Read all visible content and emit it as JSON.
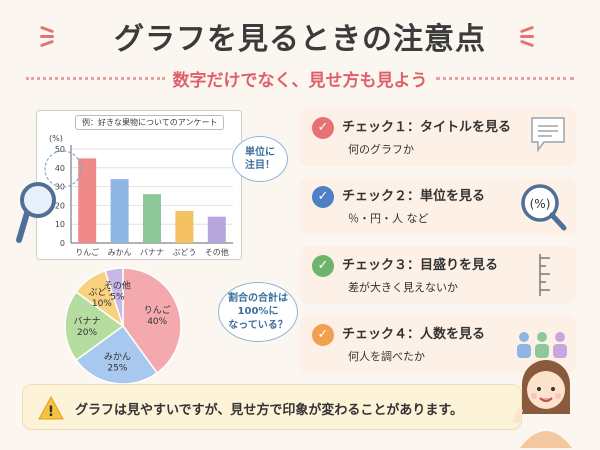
{
  "title": "グラフを見るときの注意点",
  "subtitle": "数字だけでなく、見せ方も見よう",
  "bar_chart_caption": "例：好きな果物についてのアンケート",
  "bubble_unit": [
    "単位に",
    "注目！"
  ],
  "bubble_ratio": [
    "割合の合計は",
    "100%に",
    "なっている？"
  ],
  "chart_data": [
    {
      "type": "bar",
      "title": "例：好きな果物についてのアンケート",
      "ylabel": "(%)",
      "categories": [
        "りんご",
        "みかん",
        "バナナ",
        "ぶどう",
        "その他"
      ],
      "values": [
        45,
        34,
        26,
        17,
        14
      ],
      "ylim": [
        0,
        50
      ],
      "yticks": [
        0,
        10,
        20,
        30,
        40,
        50
      ],
      "colors": [
        "#f08a8a",
        "#8fb6e3",
        "#8ec89a",
        "#f5c263",
        "#b7a6db"
      ]
    },
    {
      "type": "pie",
      "labels": [
        "りんご",
        "みかん",
        "バナナ",
        "ぶどう",
        "その他"
      ],
      "values": [
        40,
        25,
        20,
        10,
        5
      ],
      "value_labels": [
        "40%",
        "25%",
        "20%",
        "10%",
        "5%"
      ],
      "colors": [
        "#f4a9ae",
        "#a9c8ef",
        "#b6dda0",
        "#f8d27f",
        "#c9b8e6"
      ]
    }
  ],
  "checks": [
    {
      "heading": "チェック１：タイトルを見る",
      "desc": "何のグラフか",
      "color": "#e57373",
      "icon": "chat-bubble-icon"
    },
    {
      "heading": "チェック２：単位を見る",
      "desc": "％・円・人 など",
      "color": "#4f7fc6",
      "icon": "magnifier-percent-icon",
      "icon_text": "(%)"
    },
    {
      "heading": "チェック３：目盛りを見る",
      "desc": "差が大きく見えないか",
      "color": "#6db56d",
      "icon": "scale-ruler-icon"
    },
    {
      "heading": "チェック４：人数を見る",
      "desc": "何人を調べたか",
      "color": "#f0a050",
      "icon": "people-icon"
    }
  ],
  "check_mark": "✓",
  "footer_text": "グラフは見やすいですが、見せ方で印象が変わることがあります。",
  "warning_mark": "!"
}
